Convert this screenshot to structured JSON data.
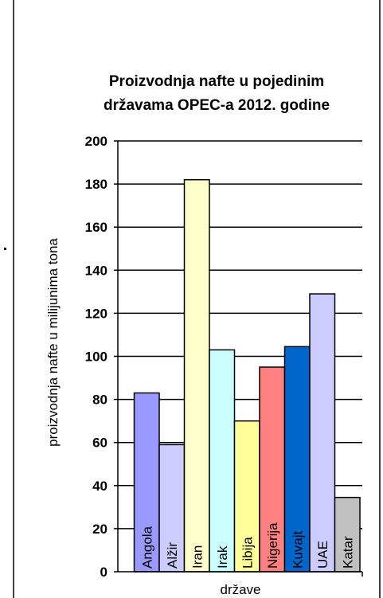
{
  "chart_data": {
    "type": "bar",
    "title_lines": [
      "Proizvodnja nafte u pojedinim",
      "državama OPEC-a 2012. godine"
    ],
    "xlabel": "države",
    "ylabel": "proizvodnja nafte u milijunima tona",
    "ylim": [
      0,
      200
    ],
    "yticks": [
      0,
      20,
      40,
      60,
      80,
      100,
      120,
      140,
      160,
      180,
      200
    ],
    "grid": true,
    "legend": "none",
    "categories": [
      "Angola",
      "Alžir",
      "Iran",
      "Irak",
      "Libija",
      "Nigerija",
      "Kuvajt",
      "UAE",
      "Katar"
    ],
    "values": [
      83,
      59,
      182,
      103,
      70,
      95,
      104.5,
      129,
      34.5
    ],
    "colors": [
      "#9999ff",
      "#ccccff",
      "#ffffcc",
      "#ccffff",
      "#ffff99",
      "#ff8080",
      "#0066cc",
      "#ccccff",
      "#c0c0c0"
    ]
  }
}
